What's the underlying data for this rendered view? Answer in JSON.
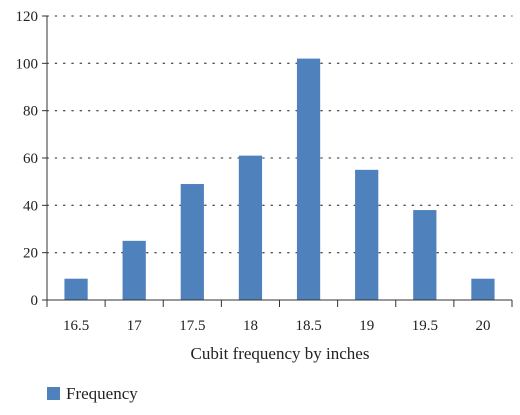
{
  "chart_data": {
    "type": "bar",
    "categories": [
      "16.5",
      "17",
      "17.5",
      "18",
      "18.5",
      "19",
      "19.5",
      "20"
    ],
    "series": [
      {
        "name": "Frequency",
        "values": [
          9,
          25,
          49,
          61,
          102,
          55,
          38,
          9
        ]
      }
    ],
    "title": "",
    "xlabel": "Cubit frequency by inches",
    "ylabel": "",
    "ylim": [
      0,
      120
    ],
    "yticks": [
      "0",
      "20",
      "40",
      "60",
      "80",
      "100",
      "120"
    ],
    "grid": "horizontal dotted",
    "legend_position": "bottom-left",
    "bar_color": "#4f81bd"
  }
}
